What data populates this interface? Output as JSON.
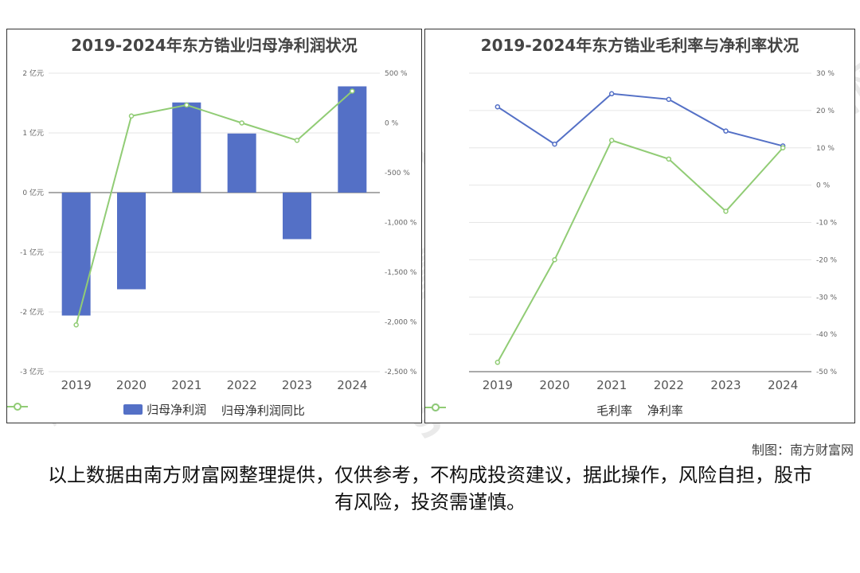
{
  "chart_data": [
    {
      "type": "bar",
      "title": "2019-2024年东方锆业归母净利润状况",
      "categories": [
        "2019",
        "2020",
        "2021",
        "2022",
        "2023",
        "2024"
      ],
      "series": [
        {
          "name": "归母净利润",
          "type": "bar",
          "axis": "left",
          "unit": "亿元",
          "values": [
            -2.06,
            -1.62,
            1.51,
            0.99,
            -0.78,
            1.78
          ]
        },
        {
          "name": "归母净利润同比",
          "type": "line",
          "axis": "right",
          "unit": "%",
          "values": [
            -2030,
            70,
            180,
            0,
            -175,
            320
          ]
        }
      ],
      "y_left": {
        "ylim": [
          -3,
          2
        ],
        "ticks": [
          2,
          1,
          0,
          -1,
          -2,
          -3
        ],
        "tick_labels": [
          "2 亿元",
          "1 亿元",
          "0 亿元",
          "-1 亿元",
          "-2 亿元",
          "-3 亿元"
        ]
      },
      "y_right": {
        "ylim": [
          -2500,
          500
        ],
        "ticks": [
          500,
          0,
          -500,
          -1000,
          -1500,
          -2000,
          -2500
        ],
        "tick_labels": [
          "500 %",
          "0 %",
          "-500 %",
          "-1,000 %",
          "-1,500 %",
          "-2,000 %",
          "-2,500 %"
        ]
      },
      "grid": true,
      "legend": "bottom",
      "colors": {
        "bar": "#5470c6",
        "line": "#91cc75"
      }
    },
    {
      "type": "line",
      "title": "2019-2024年东方锆业毛利率与净利率状况",
      "categories": [
        "2019",
        "2020",
        "2021",
        "2022",
        "2023",
        "2024"
      ],
      "series": [
        {
          "name": "毛利率",
          "unit": "%",
          "values": [
            21,
            11,
            24.5,
            23,
            14.5,
            10.5
          ]
        },
        {
          "name": "净利率",
          "unit": "%",
          "values": [
            -47.5,
            -20,
            12,
            7,
            -7,
            10
          ]
        }
      ],
      "y_right": {
        "ylim": [
          -50,
          30
        ],
        "ticks": [
          30,
          20,
          10,
          0,
          -10,
          -20,
          -30,
          -40,
          -50
        ],
        "tick_labels": [
          "30 %",
          "20 %",
          "10 %",
          "0 %",
          "-10 %",
          "-20 %",
          "-30 %",
          "-40 %",
          "-50 %"
        ]
      },
      "grid": true,
      "legend": "bottom",
      "colors": {
        "series1": "#5470c6",
        "series2": "#91cc75"
      }
    }
  ],
  "footer": {
    "credit": "制图：南方财富网",
    "disclaimer": "以上数据由南方财富网整理提供，仅供参考，不构成投资建议，据此操作，风险自担，股市有风险，投资需谨慎。"
  },
  "watermark": {
    "cn": "南方财富网",
    "en": "Southmoney.com"
  }
}
